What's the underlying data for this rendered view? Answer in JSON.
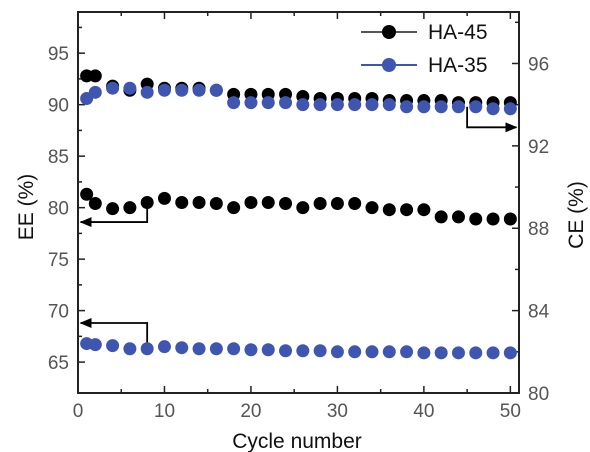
{
  "chart_data": {
    "type": "scatter",
    "xlabel": "Cycle number",
    "ylabel_left": "EE (%)",
    "ylabel_right": "CE (%)",
    "xlim": [
      0,
      51
    ],
    "ylim_left": [
      62,
      99
    ],
    "ylim_right": [
      80,
      98.5
    ],
    "x_ticks": [
      "0",
      "10",
      "20",
      "30",
      "40",
      "50"
    ],
    "y_left_ticks": [
      "65",
      "70",
      "75",
      "80",
      "85",
      "90",
      "95"
    ],
    "y_right_ticks": [
      "80",
      "84",
      "88",
      "92",
      "96"
    ],
    "legend": {
      "position": "top-right"
    },
    "colors": {
      "HA-45": "#000000",
      "HA-35": "#3f56b0"
    },
    "series": [
      {
        "name": "HA-45",
        "axis": "right",
        "metric": "CE",
        "color": "#000000",
        "x": [
          1,
          2,
          4,
          6,
          8,
          10,
          12,
          14,
          16,
          18,
          20,
          22,
          24,
          26,
          28,
          30,
          32,
          34,
          36,
          38,
          40,
          42,
          44,
          46,
          48,
          50
        ],
        "y": [
          95.4,
          95.4,
          94.9,
          94.7,
          95.0,
          94.8,
          94.8,
          94.8,
          94.7,
          94.5,
          94.5,
          94.5,
          94.5,
          94.4,
          94.3,
          94.3,
          94.3,
          94.3,
          94.2,
          94.2,
          94.2,
          94.2,
          94.1,
          94.1,
          94.1,
          94.1
        ]
      },
      {
        "name": "HA-45",
        "axis": "left",
        "metric": "EE",
        "color": "#000000",
        "x": [
          1,
          2,
          4,
          6,
          8,
          10,
          12,
          14,
          16,
          18,
          20,
          22,
          24,
          26,
          28,
          30,
          32,
          34,
          36,
          38,
          40,
          42,
          44,
          46,
          48,
          50
        ],
        "y": [
          81.3,
          80.4,
          79.9,
          80.0,
          80.5,
          80.9,
          80.5,
          80.5,
          80.4,
          80.0,
          80.5,
          80.5,
          80.4,
          80.0,
          80.4,
          80.4,
          80.4,
          80.0,
          79.8,
          79.8,
          79.8,
          79.1,
          79.1,
          78.9,
          78.9,
          78.9
        ]
      },
      {
        "name": "HA-35",
        "axis": "right",
        "metric": "CE",
        "color": "#3f56b0",
        "x": [
          1,
          2,
          4,
          6,
          8,
          10,
          12,
          14,
          16,
          18,
          20,
          22,
          24,
          26,
          28,
          30,
          32,
          34,
          36,
          38,
          40,
          42,
          44,
          46,
          48,
          50
        ],
        "y": [
          94.3,
          94.6,
          94.8,
          94.8,
          94.6,
          94.7,
          94.7,
          94.7,
          94.7,
          94.1,
          94.1,
          94.1,
          94.1,
          94.0,
          94.0,
          94.0,
          94.0,
          94.0,
          94.0,
          93.9,
          93.9,
          93.9,
          93.9,
          93.9,
          93.8,
          93.8
        ]
      },
      {
        "name": "HA-35",
        "axis": "left",
        "metric": "EE",
        "color": "#3f56b0",
        "x": [
          1,
          2,
          4,
          6,
          8,
          10,
          12,
          14,
          16,
          18,
          20,
          22,
          24,
          26,
          28,
          30,
          32,
          34,
          36,
          38,
          40,
          42,
          44,
          46,
          48,
          50
        ],
        "y": [
          66.8,
          66.7,
          66.6,
          66.3,
          66.3,
          66.5,
          66.4,
          66.3,
          66.3,
          66.3,
          66.2,
          66.2,
          66.1,
          66.1,
          66.1,
          66.0,
          66.0,
          66.0,
          66.0,
          66.0,
          65.9,
          65.9,
          65.9,
          65.9,
          65.9,
          65.9
        ]
      }
    ],
    "annotations": [
      {
        "type": "arrow",
        "direction": "left",
        "points": [
          [
            8,
            80.5
          ],
          [
            8,
            78.6
          ],
          [
            0.3,
            78.6
          ]
        ],
        "axis": "left"
      },
      {
        "type": "arrow",
        "direction": "left",
        "points": [
          [
            8,
            66.3
          ],
          [
            8,
            68.8
          ],
          [
            0.3,
            68.8
          ]
        ],
        "axis": "left"
      },
      {
        "type": "arrow",
        "direction": "right",
        "points": [
          [
            45,
            93.9
          ],
          [
            45,
            92.9
          ],
          [
            50.7,
            92.9
          ]
        ],
        "axis": "right"
      }
    ]
  }
}
